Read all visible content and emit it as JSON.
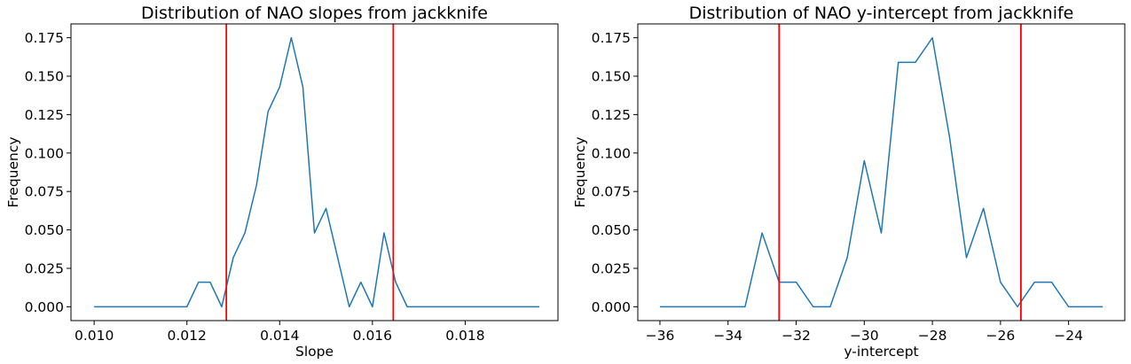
{
  "chart_data": [
    {
      "type": "line",
      "title": "Distribution of NAO slopes from jackknife",
      "xlabel": "Slope",
      "ylabel": "Frequency",
      "xlim": [
        0.0095,
        0.02
      ],
      "ylim": [
        -0.009,
        0.184
      ],
      "xticks": [
        0.01,
        0.012,
        0.014,
        0.016,
        0.018
      ],
      "xtick_labels": [
        "0.010",
        "0.012",
        "0.014",
        "0.016",
        "0.018"
      ],
      "yticks": [
        0.0,
        0.025,
        0.05,
        0.075,
        0.1,
        0.125,
        0.15,
        0.175
      ],
      "ytick_labels": [
        "0.000",
        "0.025",
        "0.050",
        "0.075",
        "0.100",
        "0.125",
        "0.150",
        "0.175"
      ],
      "line_color": "#1f77b4",
      "vline_color": "#ff0000",
      "vlines": [
        0.01285,
        0.01645
      ],
      "grid": false,
      "series": [
        {
          "x": [
            0.01,
            0.0102,
            0.0104,
            0.0106,
            0.0108,
            0.011,
            0.0112,
            0.0114,
            0.0116,
            0.0118,
            0.012,
            0.01225,
            0.0125,
            0.01275,
            0.013,
            0.01325,
            0.0135,
            0.01375,
            0.014,
            0.01425,
            0.0145,
            0.01475,
            0.015,
            0.01525,
            0.0155,
            0.01575,
            0.016,
            0.01625,
            0.0165,
            0.01675,
            0.017,
            0.0172,
            0.0174,
            0.0176,
            0.0178,
            0.018,
            0.0182,
            0.0184,
            0.0186,
            0.0188,
            0.019,
            0.0192,
            0.0194,
            0.0196
          ],
          "values": [
            0,
            0,
            0,
            0,
            0,
            0,
            0,
            0,
            0,
            0,
            0,
            0.016,
            0.016,
            0,
            0.032,
            0.048,
            0.079,
            0.127,
            0.143,
            0.175,
            0.143,
            0.048,
            0.064,
            0.032,
            0,
            0.016,
            0,
            0.048,
            0.016,
            0,
            0,
            0,
            0,
            0,
            0,
            0,
            0,
            0,
            0,
            0,
            0,
            0,
            0,
            0
          ]
        }
      ]
    },
    {
      "type": "line",
      "title": "Distribution of NAO y-intercept from jackknife",
      "xlabel": "y-intercept",
      "ylabel": "Frequency",
      "xlim": [
        -36.65,
        -22.35
      ],
      "ylim": [
        -0.009,
        0.184
      ],
      "xticks": [
        -36,
        -34,
        -32,
        -30,
        -28,
        -26,
        -24
      ],
      "xtick_labels": [
        "−36",
        "−34",
        "−32",
        "−30",
        "−28",
        "−26",
        "−24"
      ],
      "yticks": [
        0.0,
        0.025,
        0.05,
        0.075,
        0.1,
        0.125,
        0.15,
        0.175
      ],
      "ytick_labels": [
        "0.000",
        "0.025",
        "0.050",
        "0.075",
        "0.100",
        "0.125",
        "0.150",
        "0.175"
      ],
      "line_color": "#1f77b4",
      "vline_color": "#ff0000",
      "vlines": [
        -32.5,
        -25.4
      ],
      "grid": false,
      "series": [
        {
          "x": [
            -36.0,
            -35.5,
            -35.0,
            -34.5,
            -34.0,
            -33.5,
            -33.0,
            -32.5,
            -32.0,
            -31.5,
            -31.0,
            -30.5,
            -30.0,
            -29.5,
            -29.0,
            -28.5,
            -28.0,
            -27.5,
            -27.0,
            -26.5,
            -26.0,
            -25.5,
            -25.0,
            -24.5,
            -24.0,
            -23.5,
            -23.0
          ],
          "values": [
            0,
            0,
            0,
            0,
            0,
            0,
            0.048,
            0.016,
            0.016,
            0,
            0,
            0.032,
            0.095,
            0.048,
            0.159,
            0.159,
            0.175,
            0.111,
            0.032,
            0.064,
            0.016,
            0,
            0.016,
            0.016,
            0,
            0,
            0
          ]
        }
      ]
    }
  ]
}
